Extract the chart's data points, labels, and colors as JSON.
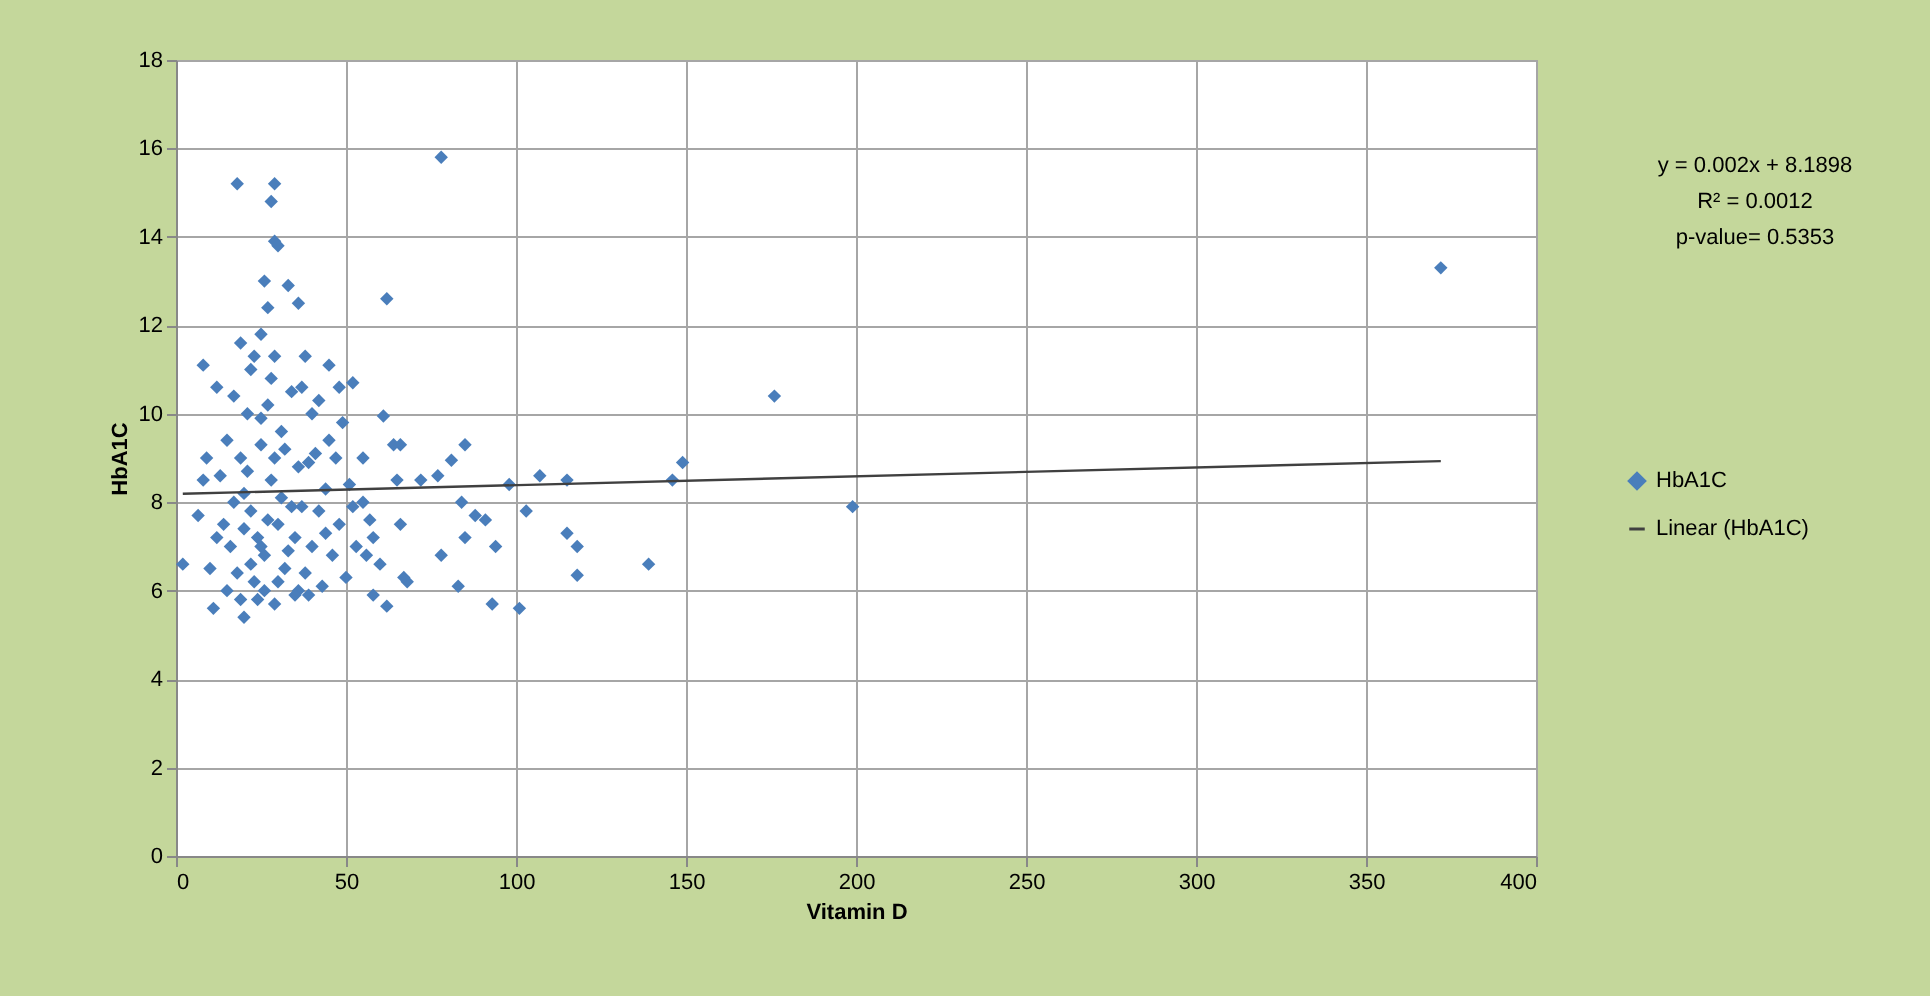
{
  "chart_data": {
    "type": "scatter",
    "xlabel": "Vitamin D",
    "ylabel": "HbA1C",
    "annotations": [
      "y = 0.002x + 8.1898",
      "R² = 0.0012",
      "p-value= 0.5353"
    ],
    "xlim": [
      0,
      400
    ],
    "xticks": [
      0,
      50,
      100,
      150,
      200,
      250,
      300,
      350,
      400
    ],
    "ylim": [
      0,
      18
    ],
    "yticks": [
      0,
      2,
      4,
      6,
      8,
      10,
      12,
      14,
      16,
      18
    ],
    "grid": true,
    "legend": "right",
    "series": [
      {
        "name": "HbA1C",
        "marker": "diamond",
        "color": "#4a7ebb",
        "x": [
          372,
          199,
          176,
          149,
          146,
          139,
          78,
          62,
          101,
          93,
          118,
          118,
          115,
          107,
          115,
          103,
          98,
          85,
          81,
          94,
          85,
          83,
          78,
          68,
          91,
          88,
          84,
          77,
          72,
          66,
          65,
          18,
          29,
          28,
          29,
          30,
          26,
          33,
          36,
          27,
          19,
          25,
          8,
          29,
          38,
          45,
          52,
          48,
          12,
          22,
          37,
          17,
          40,
          61,
          49,
          25,
          15,
          45,
          64,
          55,
          9,
          39,
          29,
          21,
          6.5,
          2,
          11,
          20,
          67,
          58,
          62,
          56,
          66,
          48,
          52,
          37,
          20,
          22,
          24,
          26,
          28,
          30,
          32,
          34,
          23,
          25,
          27,
          21,
          19,
          17,
          16,
          18,
          15,
          14,
          13,
          24,
          26,
          30,
          33,
          35,
          38,
          40,
          42,
          44,
          46,
          50,
          53,
          55,
          57,
          60,
          36,
          31,
          34,
          28,
          23,
          41,
          43,
          47,
          51,
          39,
          29,
          22,
          20,
          27,
          31,
          36,
          19,
          25,
          32,
          44,
          10,
          12,
          8,
          35,
          42,
          58
        ],
        "values": [
          13.3,
          7.9,
          10.4,
          8.9,
          8.5,
          6.6,
          15.8,
          12.6,
          5.6,
          5.7,
          6.35,
          7.0,
          7.3,
          8.6,
          8.5,
          7.8,
          8.4,
          9.3,
          8.95,
          7.0,
          7.2,
          6.1,
          6.8,
          6.2,
          7.6,
          7.7,
          8.0,
          8.6,
          8.5,
          9.3,
          8.5,
          15.2,
          15.2,
          14.8,
          13.9,
          13.8,
          13.0,
          12.9,
          12.5,
          12.4,
          11.6,
          11.8,
          11.1,
          11.3,
          11.3,
          11.1,
          10.7,
          10.6,
          10.6,
          11.0,
          10.6,
          10.4,
          10.0,
          9.95,
          9.8,
          9.9,
          9.4,
          9.4,
          9.3,
          9.0,
          9.0,
          8.9,
          9.0,
          8.7,
          7.7,
          6.6,
          5.6,
          5.4,
          6.3,
          5.9,
          5.65,
          6.8,
          7.5,
          7.5,
          7.9,
          7.9,
          8.2,
          7.8,
          7.2,
          6.8,
          8.5,
          7.5,
          6.5,
          7.9,
          6.2,
          9.3,
          10.2,
          10.0,
          9.0,
          8.0,
          7.0,
          6.4,
          6.0,
          7.5,
          8.6,
          5.8,
          6.0,
          6.2,
          6.9,
          7.2,
          6.4,
          7.0,
          7.8,
          8.3,
          6.8,
          6.3,
          7.0,
          8.0,
          7.6,
          6.6,
          8.8,
          9.6,
          10.5,
          10.8,
          11.3,
          9.1,
          6.1,
          9.0,
          8.4,
          5.9,
          5.7,
          6.6,
          7.4,
          7.6,
          8.1,
          6.0,
          5.8,
          7.0,
          9.2,
          7.3,
          6.5,
          7.2,
          8.5,
          5.9,
          10.3,
          7.2
        ]
      },
      {
        "name": "Linear (HbA1C)",
        "type": "line",
        "marker": "none",
        "line_style": "solid",
        "color": "#404040",
        "x": [
          2,
          372
        ],
        "values": [
          8.19,
          8.93
        ]
      }
    ]
  }
}
